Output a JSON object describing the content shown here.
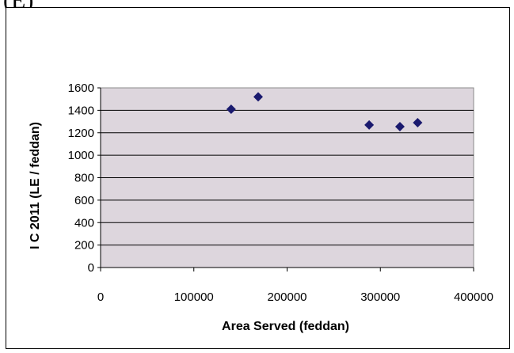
{
  "panel_label": "(E)",
  "chart_data": {
    "type": "scatter",
    "title": "",
    "xlabel": "Area Served (feddan)",
    "ylabel": "I C 2011 (LE / feddan)",
    "xlim": [
      0,
      400000
    ],
    "ylim": [
      0,
      1600
    ],
    "x_ticks": [
      0,
      100000,
      200000,
      300000,
      400000
    ],
    "x_tick_labels": [
      "0",
      "100000",
      "200000",
      "300000",
      "400000"
    ],
    "y_ticks": [
      0,
      200,
      400,
      600,
      800,
      1000,
      1200,
      1400,
      1600
    ],
    "y_tick_labels": [
      "0",
      "200",
      "400",
      "600",
      "800",
      "1000",
      "1200",
      "1400",
      "1600"
    ],
    "grid": "horizontal",
    "legend": "none",
    "plot_background": "#DDD6DD",
    "marker_color": "#1A1A6E",
    "marker": "diamond",
    "series": [
      {
        "points": [
          {
            "x": 140000,
            "y": 1410
          },
          {
            "x": 169000,
            "y": 1520
          },
          {
            "x": 288000,
            "y": 1270
          },
          {
            "x": 321000,
            "y": 1255
          },
          {
            "x": 340000,
            "y": 1290
          }
        ]
      }
    ]
  }
}
